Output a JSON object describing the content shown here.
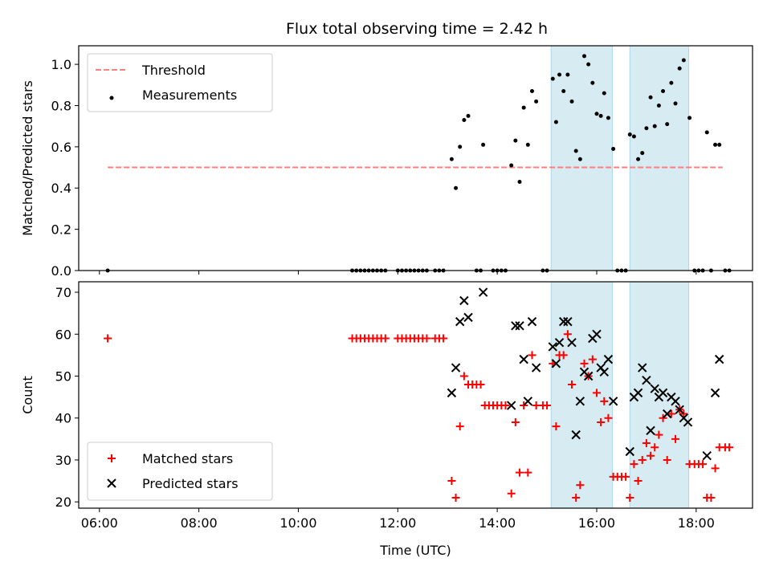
{
  "figure": {
    "title": "Flux total observing time = 2.42 h"
  },
  "chart_data": [
    {
      "type": "scatter",
      "ylabel": "Matched/Predicted stars",
      "xlabel": "",
      "xlim": [
        "05:35",
        "19:08"
      ],
      "ylim": [
        0,
        1.09
      ],
      "yticks": [
        "0.0",
        "0.2",
        "0.4",
        "0.6",
        "0.8",
        "1.0"
      ],
      "grid": false,
      "legend_position": "upper-left",
      "shaded_intervals": [
        [
          "15:05",
          "16:19"
        ],
        [
          "16:40",
          "17:51"
        ]
      ],
      "shade_color": "#add8e6",
      "series": [
        {
          "name": "Threshold",
          "kind": "dashed-line",
          "color": "#ff7f7f",
          "points": [
            [
              "06:10",
              0.5
            ],
            [
              "18:32",
              0.5
            ]
          ]
        },
        {
          "name": "Measurements",
          "kind": "dots",
          "color": "#000000",
          "points": [
            [
              "06:10",
              0.0
            ],
            [
              "11:05",
              0.0
            ],
            [
              "11:10",
              0.0
            ],
            [
              "11:15",
              0.0
            ],
            [
              "11:20",
              0.0
            ],
            [
              "11:25",
              0.0
            ],
            [
              "11:30",
              0.0
            ],
            [
              "11:35",
              0.0
            ],
            [
              "11:40",
              0.0
            ],
            [
              "11:45",
              0.0
            ],
            [
              "12:00",
              0.0
            ],
            [
              "12:05",
              0.0
            ],
            [
              "12:10",
              0.0
            ],
            [
              "12:15",
              0.0
            ],
            [
              "12:20",
              0.0
            ],
            [
              "12:25",
              0.0
            ],
            [
              "12:30",
              0.0
            ],
            [
              "12:35",
              0.0
            ],
            [
              "12:45",
              0.0
            ],
            [
              "12:50",
              0.0
            ],
            [
              "12:55",
              0.0
            ],
            [
              "13:05",
              0.54
            ],
            [
              "13:10",
              0.4
            ],
            [
              "13:15",
              0.6
            ],
            [
              "13:20",
              0.73
            ],
            [
              "13:25",
              0.75
            ],
            [
              "13:35",
              0.0
            ],
            [
              "13:40",
              0.0
            ],
            [
              "13:43",
              0.61
            ],
            [
              "13:55",
              0.0
            ],
            [
              "14:00",
              0.0
            ],
            [
              "14:05",
              0.0
            ],
            [
              "14:10",
              0.0
            ],
            [
              "14:17",
              0.51
            ],
            [
              "14:22",
              0.63
            ],
            [
              "14:27",
              0.43
            ],
            [
              "14:32",
              0.79
            ],
            [
              "14:37",
              0.61
            ],
            [
              "14:42",
              0.87
            ],
            [
              "14:47",
              0.82
            ],
            [
              "14:55",
              0.0
            ],
            [
              "15:00",
              0.0
            ],
            [
              "15:07",
              0.93
            ],
            [
              "15:11",
              0.72
            ],
            [
              "15:15",
              0.95
            ],
            [
              "15:20",
              0.87
            ],
            [
              "15:25",
              0.95
            ],
            [
              "15:30",
              0.82
            ],
            [
              "15:35",
              0.58
            ],
            [
              "15:40",
              0.54
            ],
            [
              "15:45",
              1.04
            ],
            [
              "15:50",
              1.0
            ],
            [
              "15:55",
              0.91
            ],
            [
              "16:00",
              0.76
            ],
            [
              "16:05",
              0.75
            ],
            [
              "16:09",
              0.86
            ],
            [
              "16:14",
              0.74
            ],
            [
              "16:20",
              0.59
            ],
            [
              "16:25",
              0.0
            ],
            [
              "16:30",
              0.0
            ],
            [
              "16:35",
              0.0
            ],
            [
              "16:40",
              0.66
            ],
            [
              "16:45",
              0.65
            ],
            [
              "16:50",
              0.54
            ],
            [
              "16:55",
              0.57
            ],
            [
              "17:00",
              0.69
            ],
            [
              "17:05",
              0.84
            ],
            [
              "17:10",
              0.7
            ],
            [
              "17:15",
              0.8
            ],
            [
              "17:20",
              0.87
            ],
            [
              "17:25",
              0.71
            ],
            [
              "17:30",
              0.91
            ],
            [
              "17:35",
              0.81
            ],
            [
              "17:40",
              0.98
            ],
            [
              "17:45",
              1.02
            ],
            [
              "17:52",
              0.74
            ],
            [
              "17:58",
              0.0
            ],
            [
              "18:03",
              0.0
            ],
            [
              "18:08",
              0.0
            ],
            [
              "18:13",
              0.67
            ],
            [
              "18:18",
              0.0
            ],
            [
              "18:23",
              0.61
            ],
            [
              "18:28",
              0.61
            ],
            [
              "18:35",
              0.0
            ],
            [
              "18:40",
              0.0
            ]
          ]
        }
      ]
    },
    {
      "type": "scatter",
      "ylabel": "Count",
      "xlabel": "Time (UTC)",
      "xlim": [
        "05:35",
        "19:08"
      ],
      "ylim": [
        18.5,
        72.5
      ],
      "xticks": [
        "06:00",
        "08:00",
        "10:00",
        "12:00",
        "14:00",
        "16:00",
        "18:00"
      ],
      "yticks": [
        "20",
        "30",
        "40",
        "50",
        "60",
        "70"
      ],
      "grid": false,
      "legend_position": "lower-left",
      "shaded_intervals": [
        [
          "15:05",
          "16:19"
        ],
        [
          "16:40",
          "17:51"
        ]
      ],
      "shade_color": "#add8e6",
      "series": [
        {
          "name": "Matched stars",
          "kind": "plus",
          "color": "#ff0000",
          "points": [
            [
              "06:10",
              59
            ],
            [
              "11:05",
              59
            ],
            [
              "11:10",
              59
            ],
            [
              "11:15",
              59
            ],
            [
              "11:20",
              59
            ],
            [
              "11:25",
              59
            ],
            [
              "11:30",
              59
            ],
            [
              "11:35",
              59
            ],
            [
              "11:40",
              59
            ],
            [
              "11:45",
              59
            ],
            [
              "12:00",
              59
            ],
            [
              "12:05",
              59
            ],
            [
              "12:10",
              59
            ],
            [
              "12:15",
              59
            ],
            [
              "12:20",
              59
            ],
            [
              "12:25",
              59
            ],
            [
              "12:30",
              59
            ],
            [
              "12:35",
              59
            ],
            [
              "12:45",
              59
            ],
            [
              "12:50",
              59
            ],
            [
              "12:55",
              59
            ],
            [
              "13:05",
              25
            ],
            [
              "13:10",
              21
            ],
            [
              "13:15",
              38
            ],
            [
              "13:20",
              50
            ],
            [
              "13:25",
              48
            ],
            [
              "13:30",
              48
            ],
            [
              "13:35",
              48
            ],
            [
              "13:40",
              48
            ],
            [
              "13:45",
              43
            ],
            [
              "13:50",
              43
            ],
            [
              "13:55",
              43
            ],
            [
              "14:00",
              43
            ],
            [
              "14:05",
              43
            ],
            [
              "14:10",
              43
            ],
            [
              "14:17",
              22
            ],
            [
              "14:22",
              39
            ],
            [
              "14:27",
              27
            ],
            [
              "14:32",
              43
            ],
            [
              "14:37",
              27
            ],
            [
              "14:42",
              55
            ],
            [
              "14:47",
              43
            ],
            [
              "14:55",
              43
            ],
            [
              "15:00",
              43
            ],
            [
              "15:07",
              53
            ],
            [
              "15:11",
              38
            ],
            [
              "15:15",
              55
            ],
            [
              "15:20",
              55
            ],
            [
              "15:25",
              60
            ],
            [
              "15:30",
              48
            ],
            [
              "15:35",
              21
            ],
            [
              "15:40",
              24
            ],
            [
              "15:45",
              53
            ],
            [
              "15:50",
              50
            ],
            [
              "15:55",
              54
            ],
            [
              "16:00",
              46
            ],
            [
              "16:05",
              39
            ],
            [
              "16:09",
              44
            ],
            [
              "16:14",
              40
            ],
            [
              "16:20",
              26
            ],
            [
              "16:25",
              26
            ],
            [
              "16:30",
              26
            ],
            [
              "16:35",
              26
            ],
            [
              "16:40",
              21
            ],
            [
              "16:45",
              29
            ],
            [
              "16:50",
              25
            ],
            [
              "16:55",
              30
            ],
            [
              "17:00",
              34
            ],
            [
              "17:05",
              31
            ],
            [
              "17:10",
              33
            ],
            [
              "17:15",
              36
            ],
            [
              "17:20",
              40
            ],
            [
              "17:25",
              30
            ],
            [
              "17:30",
              41
            ],
            [
              "17:35",
              35
            ],
            [
              "17:40",
              42
            ],
            [
              "17:45",
              41
            ],
            [
              "17:52",
              29
            ],
            [
              "17:58",
              29
            ],
            [
              "18:03",
              29
            ],
            [
              "18:08",
              29
            ],
            [
              "18:13",
              21
            ],
            [
              "18:18",
              21
            ],
            [
              "18:23",
              28
            ],
            [
              "18:28",
              33
            ],
            [
              "18:35",
              33
            ],
            [
              "18:40",
              33
            ]
          ]
        },
        {
          "name": "Predicted stars",
          "kind": "x",
          "color": "#000000",
          "points": [
            [
              "13:05",
              46
            ],
            [
              "13:10",
              52
            ],
            [
              "13:15",
              63
            ],
            [
              "13:20",
              68
            ],
            [
              "13:25",
              64
            ],
            [
              "13:43",
              70
            ],
            [
              "14:17",
              43
            ],
            [
              "14:22",
              62
            ],
            [
              "14:27",
              62
            ],
            [
              "14:32",
              54
            ],
            [
              "14:37",
              44
            ],
            [
              "14:42",
              63
            ],
            [
              "14:47",
              52
            ],
            [
              "15:07",
              57
            ],
            [
              "15:11",
              53
            ],
            [
              "15:15",
              58
            ],
            [
              "15:20",
              63
            ],
            [
              "15:25",
              63
            ],
            [
              "15:30",
              58
            ],
            [
              "15:35",
              36
            ],
            [
              "15:40",
              44
            ],
            [
              "15:45",
              51
            ],
            [
              "15:50",
              50
            ],
            [
              "15:55",
              59
            ],
            [
              "16:00",
              60
            ],
            [
              "16:05",
              52
            ],
            [
              "16:09",
              51
            ],
            [
              "16:14",
              54
            ],
            [
              "16:20",
              44
            ],
            [
              "16:40",
              32
            ],
            [
              "16:45",
              45
            ],
            [
              "16:50",
              46
            ],
            [
              "16:55",
              52
            ],
            [
              "17:00",
              49
            ],
            [
              "17:05",
              37
            ],
            [
              "17:10",
              47
            ],
            [
              "17:15",
              45
            ],
            [
              "17:20",
              46
            ],
            [
              "17:25",
              41
            ],
            [
              "17:30",
              45
            ],
            [
              "17:35",
              44
            ],
            [
              "17:40",
              42
            ],
            [
              "17:45",
              40
            ],
            [
              "17:50",
              39
            ],
            [
              "18:13",
              31
            ],
            [
              "18:23",
              46
            ],
            [
              "18:28",
              54
            ]
          ]
        }
      ]
    }
  ]
}
